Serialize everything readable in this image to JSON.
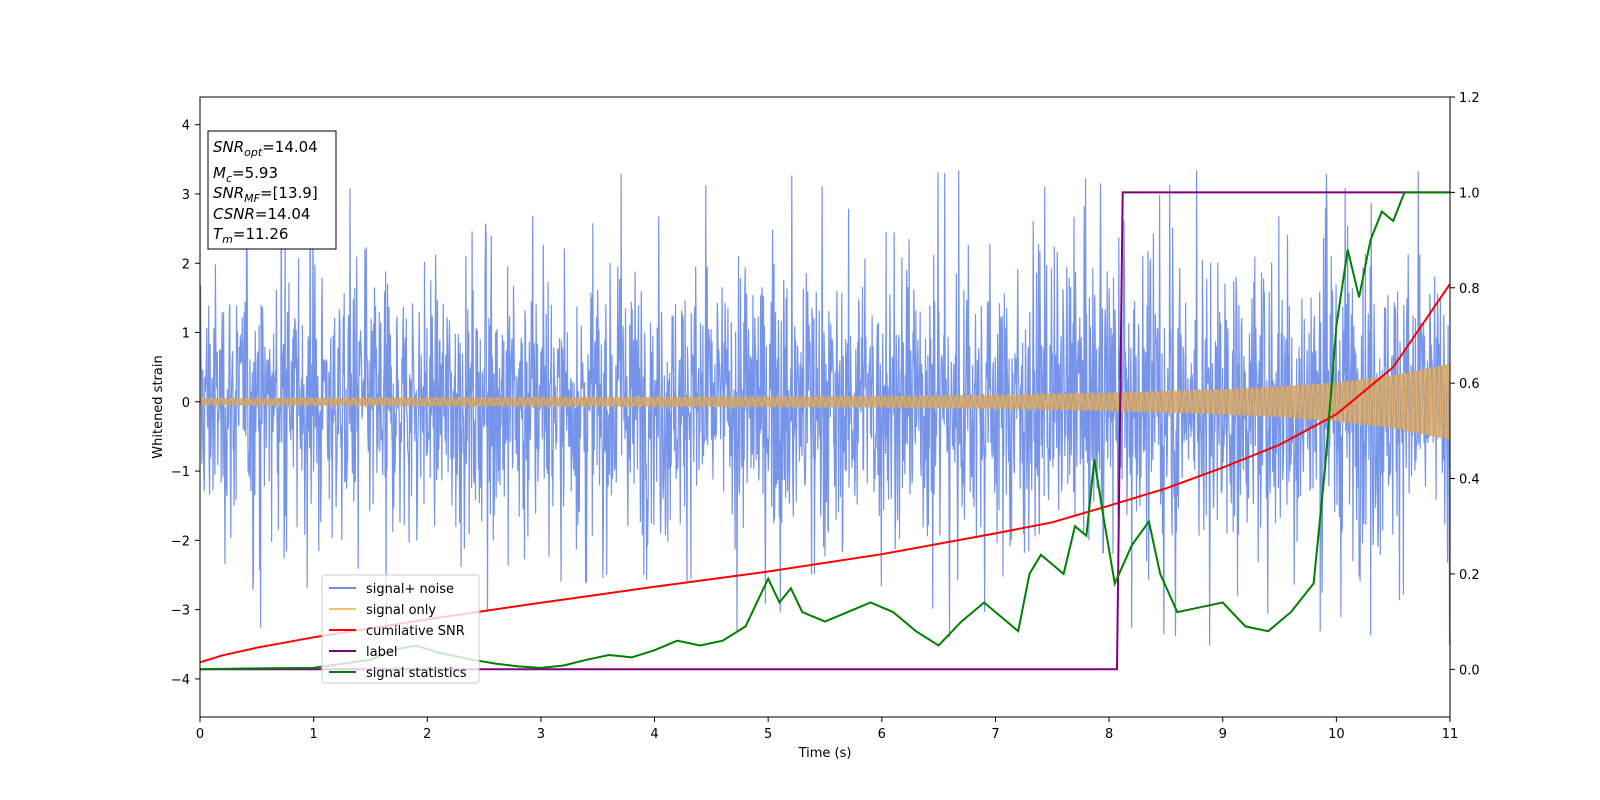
{
  "chart_data": {
    "type": "line",
    "xlabel": "Time (s)",
    "ylabel": "Whitened strain",
    "xlim": [
      0,
      11
    ],
    "ylim": [
      -4.55,
      4.4
    ],
    "y2lim": [
      -0.1,
      1.2
    ],
    "x_ticks": [
      "0",
      "1",
      "2",
      "3",
      "4",
      "5",
      "6",
      "7",
      "8",
      "9",
      "10",
      "11"
    ],
    "y_ticks": [
      "−4",
      "−3",
      "−2",
      "−1",
      "0",
      "1",
      "2",
      "3",
      "4"
    ],
    "y2_ticks": [
      "0.0",
      "0.2",
      "0.4",
      "0.6",
      "0.8",
      "1.0",
      "1.2"
    ],
    "grid": false,
    "legend_position": "lower-left",
    "annotation": {
      "line1": {
        "sym": "SNR",
        "sub": "opt",
        "val": "=14.04"
      },
      "line2": {
        "sym": "M",
        "sub": "c",
        "val": "=5.93"
      },
      "line3": {
        "sym": "SNR",
        "sub": "MF",
        "val": "=[13.9]"
      },
      "line4": {
        "sym": "CSNR",
        "sub": "",
        "val": "=14.04"
      },
      "line5": {
        "sym": "T",
        "sub": "m",
        "val": "=11.26"
      }
    },
    "series": [
      {
        "name": "signal+ noise",
        "axis": "left",
        "color": "#6f8ee8",
        "description_of_generation": "noise envelope",
        "envelope": {
          "x": [
            0,
            2,
            4,
            6,
            8,
            9,
            10,
            11
          ],
          "typical_amplitude": [
            2.1,
            2.1,
            2.2,
            2.2,
            2.3,
            2.3,
            2.4,
            2.4
          ],
          "peak_max": 3.78,
          "peak_min": -3.9
        }
      },
      {
        "name": "signal only",
        "axis": "left",
        "color": "#f7be6c",
        "envelope": {
          "x": [
            0,
            2,
            4,
            6,
            7,
            8,
            9,
            9.5,
            10,
            10.5,
            11
          ],
          "amplitude": [
            0.05,
            0.06,
            0.07,
            0.08,
            0.1,
            0.13,
            0.18,
            0.22,
            0.28,
            0.38,
            0.55
          ]
        }
      },
      {
        "name": "cumilative SNR",
        "axis": "left",
        "color": "#ff0000",
        "x": [
          0,
          0.2,
          0.5,
          1,
          2,
          3,
          4,
          5,
          6,
          7,
          7.5,
          8,
          8.5,
          9,
          9.5,
          10,
          10.5,
          11
        ],
        "y": [
          -3.76,
          -3.66,
          -3.55,
          -3.4,
          -3.14,
          -2.9,
          -2.67,
          -2.45,
          -2.2,
          -1.9,
          -1.74,
          -1.5,
          -1.25,
          -0.95,
          -0.62,
          -0.18,
          0.5,
          1.7
        ]
      },
      {
        "name": "label",
        "axis": "right",
        "color": "#800080",
        "x": [
          0,
          8.07,
          8.12,
          11
        ],
        "y": [
          0,
          0,
          1,
          1
        ]
      },
      {
        "name": "signal statistics",
        "axis": "right",
        "color": "#008000",
        "x": [
          0,
          0.5,
          1,
          1.5,
          1.7,
          1.9,
          2.1,
          2.2,
          2.4,
          2.6,
          2.8,
          3.0,
          3.2,
          3.4,
          3.6,
          3.8,
          4.0,
          4.2,
          4.4,
          4.6,
          4.8,
          5.0,
          5.1,
          5.2,
          5.3,
          5.5,
          5.7,
          5.9,
          6.1,
          6.3,
          6.5,
          6.7,
          6.9,
          7.0,
          7.2,
          7.3,
          7.4,
          7.5,
          7.6,
          7.7,
          7.8,
          7.87,
          7.95,
          8.05,
          8.2,
          8.35,
          8.45,
          8.6,
          8.8,
          9.0,
          9.2,
          9.4,
          9.6,
          9.8,
          9.9,
          10.0,
          10.1,
          10.2,
          10.3,
          10.4,
          10.5,
          10.6,
          10.7,
          11.0
        ],
        "y": [
          0.0,
          0.002,
          0.003,
          0.02,
          0.04,
          0.05,
          0.035,
          0.03,
          0.02,
          0.012,
          0.006,
          0.003,
          0.008,
          0.02,
          0.03,
          0.025,
          0.04,
          0.06,
          0.05,
          0.06,
          0.09,
          0.19,
          0.14,
          0.17,
          0.12,
          0.1,
          0.12,
          0.14,
          0.12,
          0.08,
          0.05,
          0.1,
          0.14,
          0.12,
          0.08,
          0.2,
          0.24,
          0.22,
          0.2,
          0.3,
          0.28,
          0.44,
          0.32,
          0.18,
          0.26,
          0.31,
          0.2,
          0.12,
          0.13,
          0.14,
          0.09,
          0.08,
          0.12,
          0.18,
          0.42,
          0.72,
          0.88,
          0.78,
          0.9,
          0.96,
          0.94,
          1.0,
          1.0,
          1.0
        ]
      }
    ]
  }
}
